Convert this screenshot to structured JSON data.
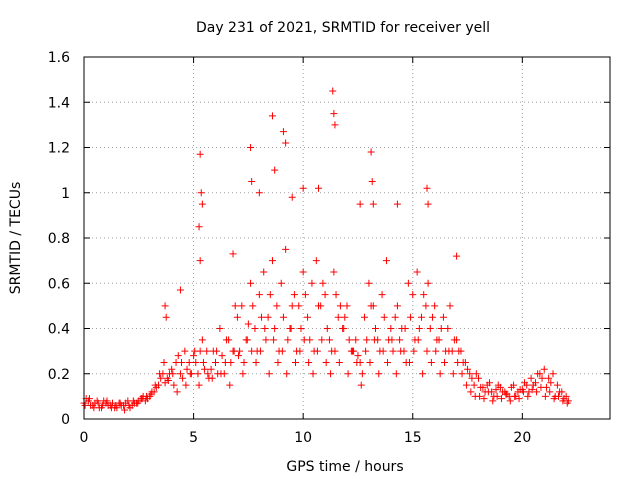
{
  "chart_data": {
    "type": "scatter",
    "title": "Day 231 of 2021, SRMTID for receiver yell",
    "xlabel": "GPS time / hours",
    "ylabel": "SRMTID / TECUs",
    "xlim": [
      0,
      24
    ],
    "ylim": [
      0,
      1.6
    ],
    "xticks": [
      0,
      5,
      10,
      15,
      20
    ],
    "xtick_labels": [
      "0",
      "5",
      "10",
      "15",
      "20"
    ],
    "yticks": [
      0,
      0.2,
      0.4,
      0.6,
      0.8,
      1,
      1.2,
      1.4,
      1.6
    ],
    "ytick_labels": [
      "0",
      "0.2",
      "0.4",
      "0.6",
      "0.8",
      "1",
      "1.2",
      "1.4",
      "1.6"
    ],
    "grid": true,
    "marker": "+",
    "color": "#ff0000",
    "series": [
      {
        "name": "SRMTID",
        "x": [
          0.0,
          0.2,
          0.4,
          0.6,
          0.8,
          1.0,
          1.2,
          1.4,
          1.6,
          1.8,
          2.0,
          2.2,
          2.4,
          2.6,
          2.8,
          3.0,
          3.2,
          3.4,
          3.6,
          3.8,
          4.0,
          4.2,
          4.4,
          4.6,
          4.8,
          5.0,
          5.2,
          5.4,
          5.6,
          5.8,
          6.0,
          6.2,
          6.4,
          6.6,
          6.8,
          7.0,
          7.2,
          7.4,
          7.6,
          7.8,
          8.0,
          8.2,
          8.4,
          8.6,
          8.8,
          9.0,
          9.2,
          9.4,
          9.6,
          9.8,
          10.0,
          10.2,
          10.4,
          10.6,
          10.8,
          11.0,
          11.2,
          11.4,
          11.6,
          11.8,
          12.0,
          12.2,
          12.4,
          12.6,
          12.8,
          13.0,
          13.2,
          13.4,
          13.6,
          13.8,
          14.0,
          14.2,
          14.4,
          14.6,
          14.8,
          15.0,
          15.2,
          15.4,
          15.6,
          15.8,
          16.0,
          16.2,
          16.4,
          16.6,
          16.8,
          17.0,
          17.2,
          17.4,
          17.6,
          17.8,
          18.0,
          18.2,
          18.4,
          18.6,
          18.8,
          19.0,
          19.2,
          19.4,
          19.6,
          19.8,
          20.0,
          20.2,
          20.4,
          20.6,
          20.8,
          21.0,
          21.2,
          21.4,
          21.6,
          21.8,
          22.0,
          22.1,
          0.1,
          0.3,
          0.5,
          0.7,
          0.9,
          1.1,
          1.3,
          1.5,
          1.7,
          1.9,
          2.1,
          2.3,
          2.5,
          2.7,
          2.9,
          3.1,
          3.3,
          3.5,
          3.7,
          3.9,
          4.1,
          4.3,
          4.5,
          4.7,
          4.9,
          5.1,
          5.3,
          5.5,
          5.7,
          5.9,
          6.1,
          6.3,
          6.5,
          6.7,
          6.9,
          7.1,
          7.3,
          7.5,
          7.7,
          7.9,
          8.1,
          8.3,
          8.5,
          8.7,
          8.9,
          9.1,
          9.3,
          9.5,
          9.7,
          9.9,
          10.1,
          10.3,
          10.5,
          10.7,
          10.9,
          11.1,
          11.3,
          11.5,
          11.7,
          11.9,
          12.1,
          12.3,
          12.5,
          12.7,
          12.9,
          13.1,
          13.3,
          13.5,
          13.7,
          13.9,
          14.1,
          14.3,
          14.5,
          14.7,
          14.9,
          15.1,
          15.3,
          15.5,
          15.7,
          15.9,
          16.1,
          16.3,
          16.5,
          16.7,
          16.9,
          17.1,
          17.3,
          17.5,
          17.7,
          17.9,
          18.1,
          18.3,
          18.5,
          18.7,
          18.9,
          19.1,
          19.3,
          19.5,
          19.7,
          19.9,
          20.1,
          20.3,
          20.5,
          20.7,
          20.9,
          21.1,
          21.3,
          21.5,
          21.7,
          21.9,
          0.05,
          0.25,
          0.45,
          0.65,
          0.85,
          1.05,
          1.25,
          1.45,
          1.65,
          1.85,
          2.05,
          2.25,
          2.45,
          2.65,
          2.85,
          3.05,
          3.25,
          3.45,
          3.65,
          3.85,
          4.05,
          4.25,
          4.45,
          4.65,
          4.85,
          5.05,
          5.25,
          5.45,
          5.65,
          5.85,
          6.05,
          6.25,
          6.45,
          6.65,
          6.85,
          7.05,
          7.25,
          7.45,
          7.65,
          7.85,
          8.05,
          8.25,
          8.45,
          8.65,
          8.85,
          9.05,
          9.25,
          9.45,
          9.65,
          9.85,
          10.05,
          10.25,
          10.45,
          10.65,
          10.85,
          11.05,
          11.25,
          11.45,
          11.65,
          11.85,
          12.05,
          12.25,
          12.45,
          12.65,
          12.85,
          13.05,
          13.25,
          13.45,
          13.65,
          13.85,
          14.05,
          14.25,
          14.45,
          14.65,
          14.85,
          15.05,
          15.25,
          15.45,
          15.65,
          15.85,
          16.05,
          16.25,
          16.45,
          16.65,
          16.85,
          17.05,
          17.25,
          17.45,
          17.65,
          17.85,
          18.05,
          18.25,
          18.45,
          18.65,
          18.85,
          19.05,
          19.25,
          19.45,
          19.65,
          19.85,
          20.05,
          20.25,
          20.45,
          20.65,
          20.85,
          21.05,
          21.25,
          21.45,
          21.65,
          21.85,
          22.05,
          5.3,
          5.35,
          5.25,
          5.4,
          7.6,
          7.65,
          8.6,
          8.7,
          9.1,
          9.2,
          11.35,
          11.4,
          11.45,
          13.1,
          13.15,
          13.2,
          15.65,
          15.7,
          3.7,
          3.75,
          4.4,
          5.3,
          6.8,
          10.0,
          12.6,
          14.3,
          17.0,
          8.0,
          9.5,
          10.7
        ],
        "y": [
          0.07,
          0.08,
          0.06,
          0.08,
          0.05,
          0.07,
          0.06,
          0.05,
          0.07,
          0.06,
          0.08,
          0.06,
          0.07,
          0.09,
          0.08,
          0.1,
          0.12,
          0.15,
          0.2,
          0.18,
          0.22,
          0.25,
          0.2,
          0.3,
          0.25,
          0.28,
          0.2,
          0.35,
          0.3,
          0.22,
          0.25,
          0.4,
          0.2,
          0.35,
          0.3,
          0.45,
          0.5,
          0.35,
          0.6,
          0.4,
          0.55,
          0.65,
          0.45,
          0.7,
          0.5,
          0.6,
          0.75,
          0.4,
          0.55,
          0.5,
          0.65,
          0.45,
          0.6,
          0.7,
          0.5,
          0.55,
          0.35,
          0.65,
          0.45,
          0.4,
          0.5,
          0.3,
          0.35,
          0.25,
          0.45,
          0.6,
          0.5,
          0.35,
          0.55,
          0.7,
          0.4,
          0.45,
          0.35,
          0.3,
          0.6,
          0.55,
          0.65,
          0.45,
          0.5,
          0.4,
          0.5,
          0.35,
          0.45,
          0.4,
          0.3,
          0.35,
          0.3,
          0.25,
          0.2,
          0.15,
          0.18,
          0.14,
          0.15,
          0.12,
          0.13,
          0.14,
          0.12,
          0.1,
          0.15,
          0.12,
          0.13,
          0.15,
          0.18,
          0.16,
          0.2,
          0.22,
          0.18,
          0.2,
          0.15,
          0.12,
          0.1,
          0.08,
          0.09,
          0.06,
          0.07,
          0.05,
          0.08,
          0.06,
          0.07,
          0.05,
          0.06,
          0.07,
          0.05,
          0.07,
          0.08,
          0.1,
          0.09,
          0.12,
          0.14,
          0.18,
          0.16,
          0.2,
          0.15,
          0.28,
          0.18,
          0.22,
          0.2,
          0.25,
          0.3,
          0.22,
          0.18,
          0.3,
          0.2,
          0.28,
          0.35,
          0.25,
          0.5,
          0.3,
          0.25,
          0.42,
          0.5,
          0.3,
          0.45,
          0.35,
          0.55,
          0.4,
          0.3,
          0.45,
          0.35,
          0.5,
          0.3,
          0.4,
          0.55,
          0.35,
          0.3,
          0.5,
          0.6,
          0.4,
          0.3,
          0.55,
          0.5,
          0.45,
          0.35,
          0.3,
          0.28,
          0.2,
          0.35,
          0.5,
          0.4,
          0.3,
          0.45,
          0.35,
          0.3,
          0.5,
          0.4,
          0.25,
          0.45,
          0.35,
          0.4,
          0.55,
          0.6,
          0.45,
          0.35,
          0.4,
          0.3,
          0.5,
          0.35,
          0.3,
          0.25,
          0.22,
          0.18,
          0.2,
          0.14,
          0.12,
          0.16,
          0.1,
          0.15,
          0.12,
          0.11,
          0.14,
          0.1,
          0.13,
          0.16,
          0.12,
          0.15,
          0.2,
          0.18,
          0.14,
          0.16,
          0.1,
          0.12,
          0.09,
          0.06,
          0.09,
          0.05,
          0.07,
          0.06,
          0.08,
          0.05,
          0.06,
          0.07,
          0.04,
          0.06,
          0.08,
          0.07,
          0.09,
          0.1,
          0.11,
          0.15,
          0.2,
          0.25,
          0.17,
          0.2,
          0.12,
          0.25,
          0.15,
          0.2,
          0.3,
          0.15,
          0.25,
          0.2,
          0.18,
          0.3,
          0.2,
          0.25,
          0.15,
          0.3,
          0.28,
          0.2,
          0.35,
          0.3,
          0.25,
          0.3,
          0.4,
          0.2,
          0.35,
          0.25,
          0.3,
          0.2,
          0.4,
          0.25,
          0.3,
          0.35,
          0.25,
          0.2,
          0.3,
          0.35,
          0.25,
          0.2,
          0.3,
          0.25,
          0.4,
          0.2,
          0.3,
          0.25,
          0.15,
          0.3,
          0.25,
          0.35,
          0.2,
          0.3,
          0.25,
          0.35,
          0.2,
          0.3,
          0.4,
          0.25,
          0.3,
          0.35,
          0.2,
          0.3,
          0.25,
          0.3,
          0.2,
          0.25,
          0.3,
          0.2,
          0.25,
          0.2,
          0.15,
          0.12,
          0.1,
          0.1,
          0.09,
          0.12,
          0.08,
          0.1,
          0.09,
          0.11,
          0.08,
          0.1,
          0.09,
          0.12,
          0.1,
          0.13,
          0.12,
          0.14,
          0.1,
          0.12,
          0.09,
          0.1,
          0.08,
          0.07,
          1.17,
          1.0,
          0.85,
          0.95,
          1.2,
          1.05,
          1.34,
          1.1,
          1.27,
          1.22,
          1.45,
          1.35,
          1.3,
          1.18,
          1.05,
          0.95,
          1.02,
          0.95,
          0.5,
          0.45,
          0.57,
          0.7,
          0.73,
          1.02,
          0.95,
          0.95,
          0.72,
          1.0,
          0.98,
          1.02
        ]
      }
    ]
  }
}
